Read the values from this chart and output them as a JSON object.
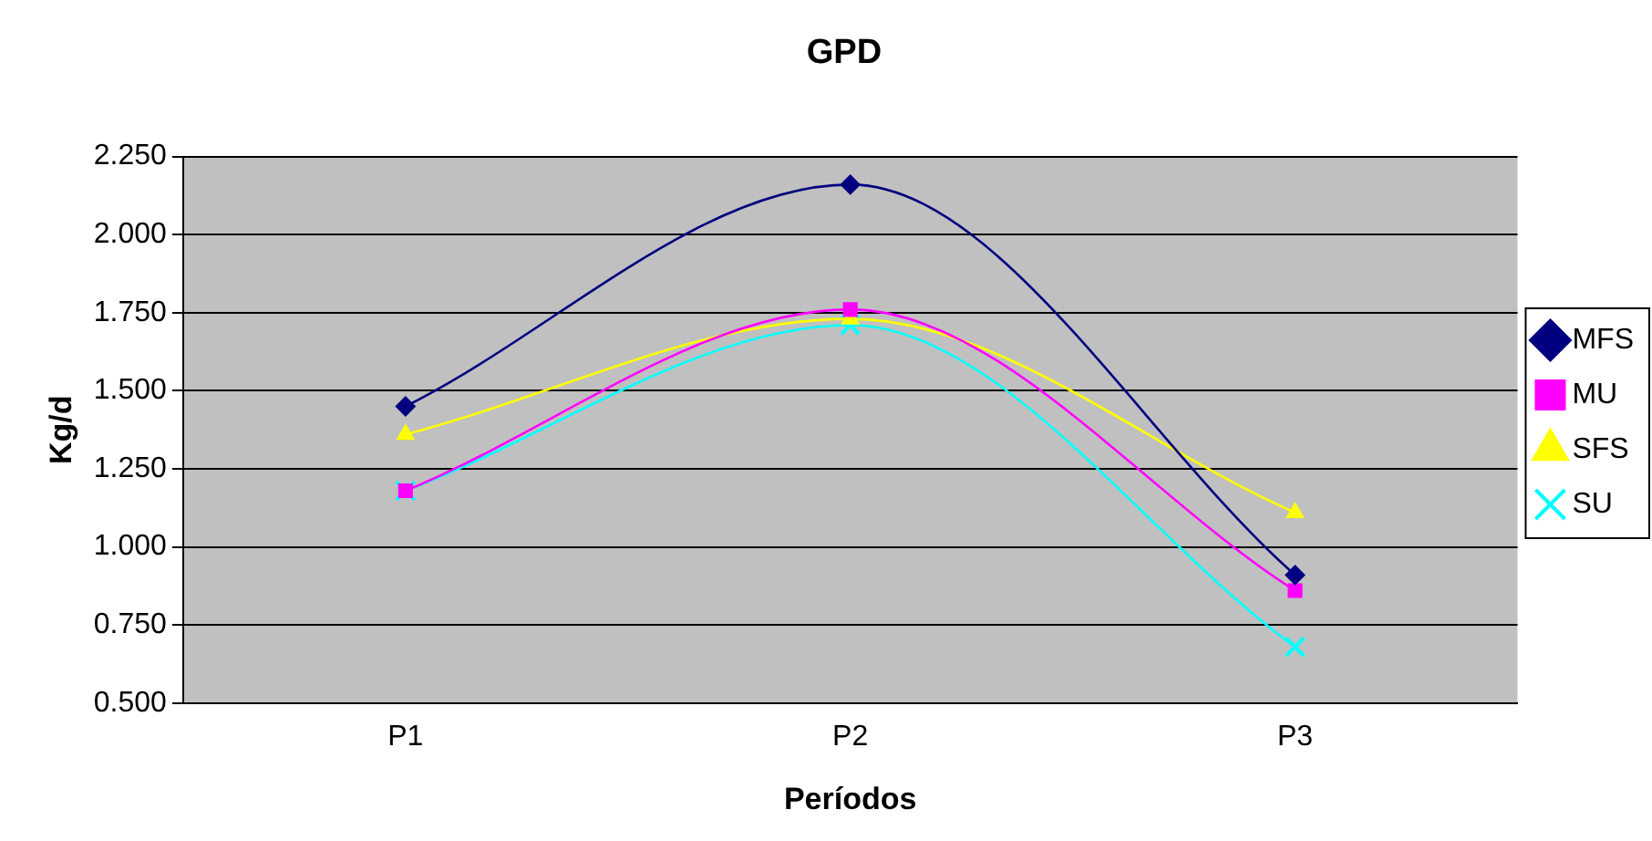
{
  "chart_data": {
    "type": "line",
    "title": "GPD",
    "xlabel": "Períodos",
    "ylabel": "Kg/d",
    "categories": [
      "P1",
      "P2",
      "P3"
    ],
    "series": [
      {
        "name": "MFS",
        "color": "#000080",
        "marker": "diamond",
        "values": [
          1.45,
          2.16,
          0.91
        ]
      },
      {
        "name": "MU",
        "color": "#ff00ff",
        "marker": "square",
        "values": [
          1.18,
          1.76,
          0.86
        ]
      },
      {
        "name": "SFS",
        "color": "#ffff00",
        "marker": "triangle",
        "values": [
          1.36,
          1.73,
          1.11
        ]
      },
      {
        "name": "SU",
        "color": "#00ffff",
        "marker": "cross",
        "values": [
          1.18,
          1.71,
          0.68
        ]
      }
    ],
    "ylim": [
      0.5,
      2.25
    ],
    "yticks": [
      {
        "value": 0.5,
        "label": "0.500"
      },
      {
        "value": 0.75,
        "label": "0.750"
      },
      {
        "value": 1,
        "label": "1.000"
      },
      {
        "value": 1.25,
        "label": "1.250"
      },
      {
        "value": 1.5,
        "label": "1.500"
      },
      {
        "value": 1.75,
        "label": "1.750"
      },
      {
        "value": 2,
        "label": "2.000"
      },
      {
        "value": 2.25,
        "label": "2.250"
      }
    ],
    "grid": "y",
    "legend": "right"
  }
}
